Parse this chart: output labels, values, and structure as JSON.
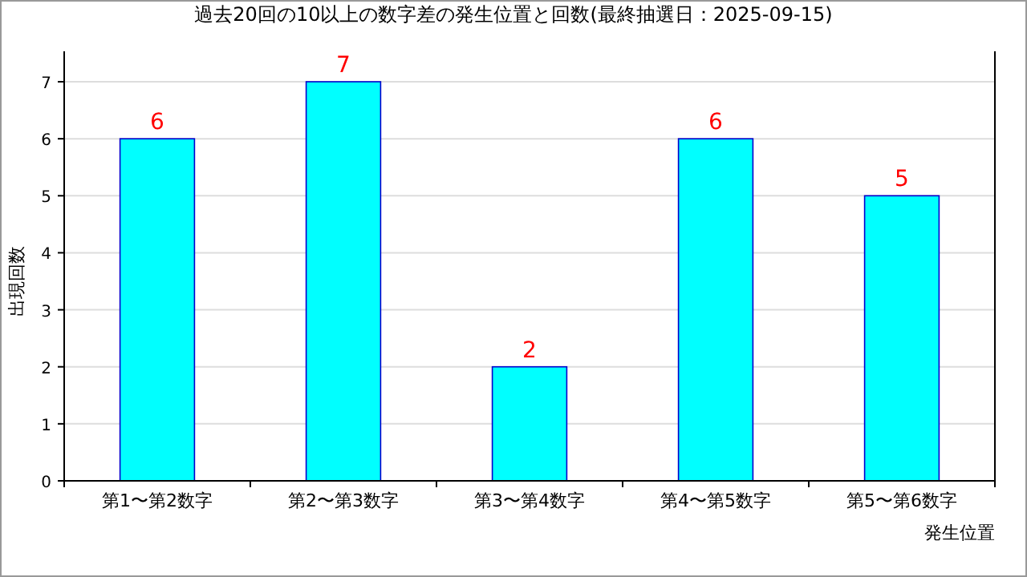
{
  "chart_data": {
    "type": "bar",
    "title": "過去20回の10以上の数字差の発生位置と回数(最終抽選日：2025-09-15)",
    "xlabel": "発生位置",
    "ylabel": "出現回数",
    "categories": [
      "第1〜第2数字",
      "第2〜第3数字",
      "第3〜第4数字",
      "第4〜第5数字",
      "第5〜第6数字"
    ],
    "values": [
      6,
      7,
      2,
      6,
      5
    ],
    "color": "#00ffff",
    "ylim": [
      0,
      7
    ],
    "yticks": [
      0,
      1,
      2,
      3,
      4,
      5,
      6,
      7
    ],
    "grid": "y",
    "data_labels": true
  }
}
